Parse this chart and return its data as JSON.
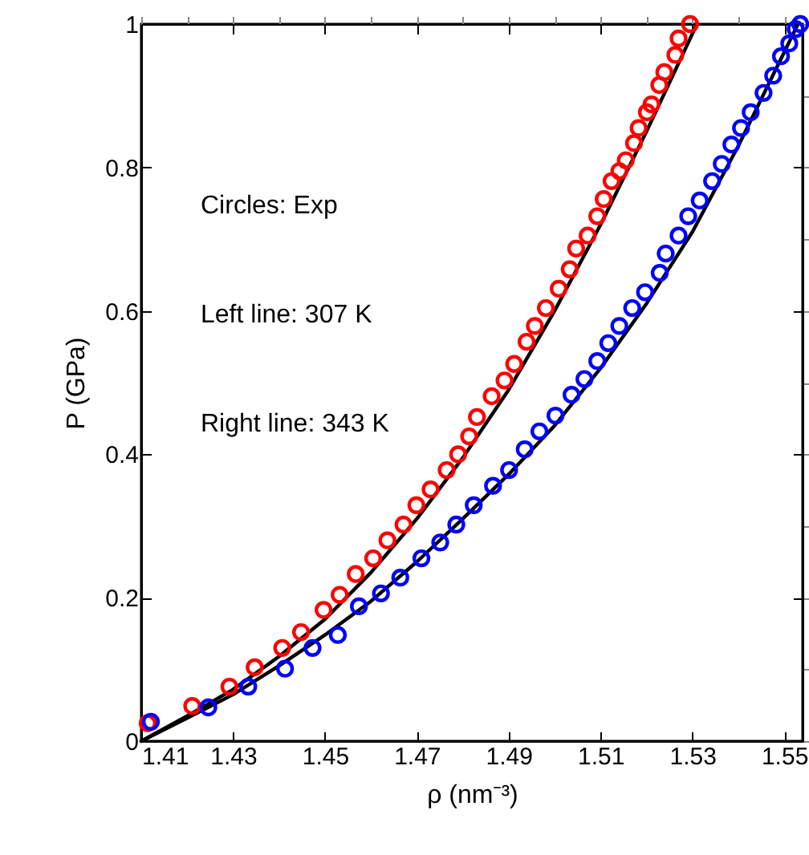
{
  "chart_data": {
    "type": "scatter",
    "xlabel": "ρ  (nm⁻³)",
    "ylabel": "P (GPa)",
    "xlim": [
      1.41,
      1.554
    ],
    "ylim": [
      0,
      1
    ],
    "xticks": [
      1.41,
      1.43,
      1.45,
      1.47,
      1.49,
      1.51,
      1.53,
      1.55
    ],
    "yticks": [
      0,
      0.2,
      0.4,
      0.6,
      0.8,
      1
    ],
    "grid": false,
    "marker": "circle",
    "annotations": [
      "Circles: Exp",
      "Left line: 307 K",
      "Right line: 343 K"
    ],
    "series": [
      {
        "color": "#ff0000",
        "x": [
          1.4114,
          1.4211,
          1.4292,
          1.4347,
          1.4407,
          1.4448,
          1.4497,
          1.4532,
          1.4567,
          1.4605,
          1.4636,
          1.4671,
          1.4699,
          1.473,
          1.4765,
          1.479,
          1.4814,
          1.4831,
          1.4863,
          1.4891,
          1.4912,
          1.4939,
          1.4957,
          1.4981,
          1.5009,
          1.5033,
          1.5047,
          1.5072,
          1.5093,
          1.5107,
          1.5124,
          1.5141,
          1.5155,
          1.5173,
          1.5183,
          1.5201,
          1.5211,
          1.5228,
          1.5239,
          1.5263,
          1.527,
          1.5295
        ],
        "values": [
          0.025,
          0.049,
          0.076,
          0.103,
          0.13,
          0.152,
          0.183,
          0.204,
          0.233,
          0.255,
          0.28,
          0.302,
          0.329,
          0.351,
          0.378,
          0.4,
          0.425,
          0.452,
          0.481,
          0.503,
          0.526,
          0.557,
          0.579,
          0.604,
          0.631,
          0.658,
          0.687,
          0.705,
          0.732,
          0.756,
          0.781,
          0.795,
          0.81,
          0.834,
          0.855,
          0.877,
          0.888,
          0.915,
          0.933,
          0.957,
          0.98,
          1.0
        ]
      },
      {
        "color": "#0000ff",
        "x": [
          1.4121,
          1.4246,
          1.4333,
          1.4413,
          1.4473,
          1.4528,
          1.4574,
          1.4622,
          1.4664,
          1.471,
          1.4751,
          1.4786,
          1.4824,
          1.4866,
          1.4901,
          1.4935,
          1.4967,
          1.5002,
          1.5037,
          1.5065,
          1.5093,
          1.5117,
          1.5141,
          1.5169,
          1.5197,
          1.5229,
          1.5242,
          1.527,
          1.5291,
          1.5316,
          1.5343,
          1.5364,
          1.5385,
          1.5406,
          1.5427,
          1.5455,
          1.5476,
          1.5493,
          1.5511,
          1.5525,
          1.5535
        ],
        "values": [
          0.027,
          0.047,
          0.076,
          0.101,
          0.13,
          0.148,
          0.188,
          0.206,
          0.228,
          0.255,
          0.277,
          0.302,
          0.329,
          0.356,
          0.378,
          0.407,
          0.432,
          0.454,
          0.483,
          0.505,
          0.53,
          0.555,
          0.579,
          0.604,
          0.626,
          0.653,
          0.68,
          0.705,
          0.732,
          0.754,
          0.781,
          0.805,
          0.832,
          0.855,
          0.877,
          0.904,
          0.928,
          0.955,
          0.973,
          0.993,
          1.0
        ]
      },
      {
        "type": "line",
        "marker": "none",
        "color": "#000000",
        "x": [
          1.41,
          1.42,
          1.43,
          1.44,
          1.45,
          1.46,
          1.47,
          1.48,
          1.49,
          1.5,
          1.51,
          1.52,
          1.531
        ],
        "values": [
          0,
          0.035,
          0.072,
          0.118,
          0.17,
          0.235,
          0.31,
          0.395,
          0.49,
          0.6,
          0.72,
          0.85,
          1.0
        ]
      },
      {
        "type": "line",
        "marker": "none",
        "color": "#000000",
        "x": [
          1.41,
          1.42,
          1.43,
          1.44,
          1.45,
          1.46,
          1.47,
          1.48,
          1.49,
          1.5,
          1.51,
          1.52,
          1.53,
          1.54,
          1.553
        ],
        "values": [
          0,
          0.032,
          0.065,
          0.105,
          0.148,
          0.195,
          0.25,
          0.31,
          0.372,
          0.44,
          0.52,
          0.61,
          0.71,
          0.83,
          1.0
        ]
      }
    ]
  }
}
